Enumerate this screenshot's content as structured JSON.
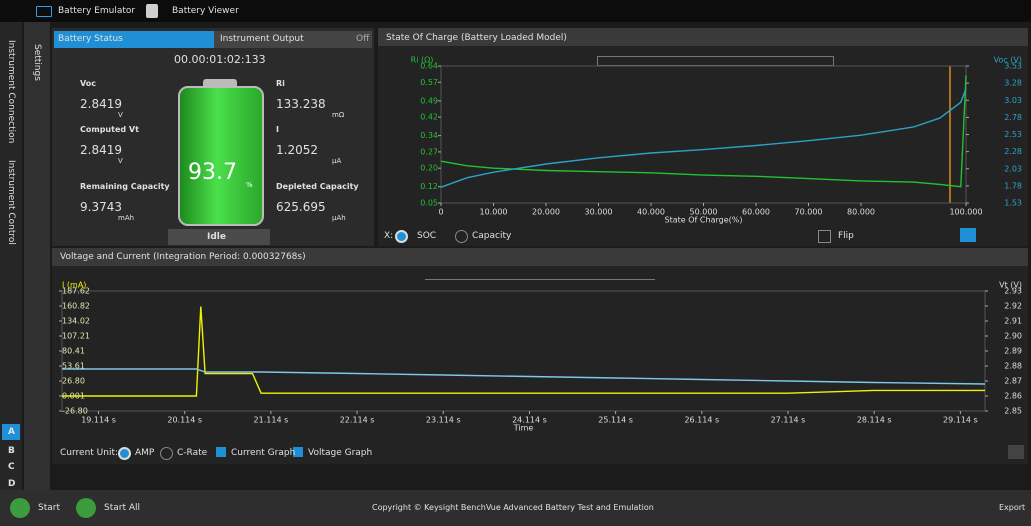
{
  "tabs": [
    "Battery Emulator",
    "Battery Viewer"
  ],
  "sidebar": {
    "items": [
      "Instrument Connection",
      "Instrument Control"
    ],
    "settings": "Settings",
    "slots": [
      "A",
      "B",
      "C",
      "D"
    ]
  },
  "battery_status": {
    "tabs": [
      "Battery Status",
      "Instrument Output"
    ],
    "output_state": "Off",
    "elapsed": "00.00:01:02:133",
    "fields": [
      {
        "label": "Voc",
        "value": "2.8419",
        "unit": "V"
      },
      {
        "label": "Computed Vt",
        "value": "2.8419",
        "unit": "V"
      },
      {
        "label": "Remaining Capacity",
        "value": "9.3743",
        "unit": "mAh"
      },
      {
        "label": "Ri",
        "value": "133.238",
        "unit": "mΩ"
      },
      {
        "label": "I",
        "value": "1.2052",
        "unit": "µA"
      },
      {
        "label": "Depleted Capacity",
        "value": "625.695",
        "unit": "µAh"
      }
    ],
    "charge": 93.7,
    "charge_unit": "%",
    "state": "Idle"
  },
  "soc_controls": {
    "x_label": "X:",
    "options": [
      "SOC",
      "Capacity"
    ],
    "flip": "Flip"
  },
  "vi_controls": {
    "unit_label": "Current Unit:",
    "options": [
      "AMP",
      "C-Rate"
    ],
    "checks": [
      "Current Graph",
      "Voltage Graph"
    ]
  },
  "footer": {
    "start": "Start",
    "start_all": "Start All",
    "copyright": "Copyright © Keysight BenchVue Advanced Battery Test and Emulation",
    "export": "Export"
  },
  "chart_data": [
    {
      "type": "line",
      "title": "State Of Charge (Battery Loaded Model)",
      "x_label": "State Of Charge(%)",
      "y_label": "Ri (Ω)",
      "y2_label": "Voc (V)",
      "x": [
        0,
        5,
        10,
        20,
        30,
        40,
        50,
        60,
        70,
        80,
        90,
        95,
        99,
        100
      ],
      "xlim": [
        0,
        100
      ],
      "xticks": [
        0,
        {
          "value": 10,
          "label": "10.000"
        },
        {
          "value": 20,
          "label": "20.000"
        },
        {
          "value": 30,
          "label": "30.000"
        },
        {
          "value": 40,
          "label": "40.000"
        },
        {
          "value": 50,
          "label": "50.000"
        },
        {
          "value": 60,
          "label": "60.000"
        },
        {
          "value": 70,
          "label": "70.000"
        },
        {
          "value": 80,
          "label": "80.000"
        },
        {
          "value": 100,
          "label": "100.000"
        }
      ],
      "ylim": [
        0.05,
        0.64
      ],
      "yticks": [
        0.05,
        0.12,
        {
          "value": 0.2,
          "label": "0.20"
        },
        0.27,
        0.34,
        0.42,
        0.49,
        0.57,
        0.64
      ],
      "y2lim": [
        1.53,
        3.53
      ],
      "y2ticks": [
        1.53,
        1.78,
        2.03,
        2.28,
        2.53,
        2.78,
        3.03,
        3.28,
        3.53
      ],
      "series": [
        {
          "color": "#22c232",
          "values": [
            0.23,
            0.21,
            0.2,
            0.19,
            0.185,
            0.18,
            0.17,
            0.165,
            0.155,
            0.145,
            0.14,
            0.13,
            0.12,
            0.6
          ]
        },
        {
          "color": "#2ba3c6",
          "axis": "y2",
          "values": [
            1.76,
            1.9,
            1.98,
            2.1,
            2.19,
            2.26,
            2.31,
            2.37,
            2.44,
            2.52,
            2.64,
            2.77,
            3.0,
            3.2
          ]
        }
      ]
    },
    {
      "type": "line",
      "title": "Voltage and Current (Integration Period: 0.00032768s)",
      "x_label": "Time",
      "y_label": "I (mA)",
      "y2_label": "Vt (V)",
      "x": [
        18.69,
        20.25,
        20.3,
        20.35,
        20.9,
        21.0,
        22.114,
        23.114,
        24.114,
        25.114,
        26.114,
        27.114,
        28.114,
        29.4
      ],
      "xlim": [
        18.69,
        29.4
      ],
      "xticks": [
        {
          "value": 19.114,
          "label": "19.114 s"
        },
        {
          "value": 20.114,
          "label": "20.114 s"
        },
        {
          "value": 21.114,
          "label": "21.114 s"
        },
        {
          "value": 22.114,
          "label": "22.114 s"
        },
        {
          "value": 23.114,
          "label": "23.114 s"
        },
        {
          "value": 24.114,
          "label": "24.114 s"
        },
        {
          "value": 25.114,
          "label": "25.114 s"
        },
        {
          "value": 26.114,
          "label": "26.114 s"
        },
        {
          "value": 27.114,
          "label": "27.114 s"
        },
        {
          "value": 28.114,
          "label": "28.114 s"
        },
        {
          "value": 29.114,
          "label": "29.114 s"
        }
      ],
      "ylim": [
        -26.8,
        187.62
      ],
      "yticks": [
        {
          "value": -26.8,
          "label": "-26.80"
        },
        0.001,
        {
          "value": 26.8,
          "label": "26.80"
        },
        53.61,
        80.41,
        107.21,
        134.02,
        160.82,
        187.62
      ],
      "y2lim": [
        2.85,
        2.93
      ],
      "y2ticks": [
        2.85,
        2.86,
        2.87,
        2.88,
        2.89,
        {
          "value": 2.9,
          "label": "2.90"
        },
        2.91,
        2.92,
        2.93
      ],
      "series": [
        {
          "color": "#f2f200",
          "values": [
            0.001,
            0.001,
            160,
            40,
            40,
            5,
            5,
            5,
            5,
            5,
            5,
            5,
            10,
            10
          ]
        },
        {
          "color": "#7ec8e8",
          "axis": "y2",
          "values": [
            2.878,
            2.878,
            2.877,
            2.876,
            2.876,
            2.876,
            2.875,
            2.874,
            2.873,
            2.872,
            2.871,
            2.87,
            2.869,
            2.868
          ]
        }
      ]
    }
  ]
}
